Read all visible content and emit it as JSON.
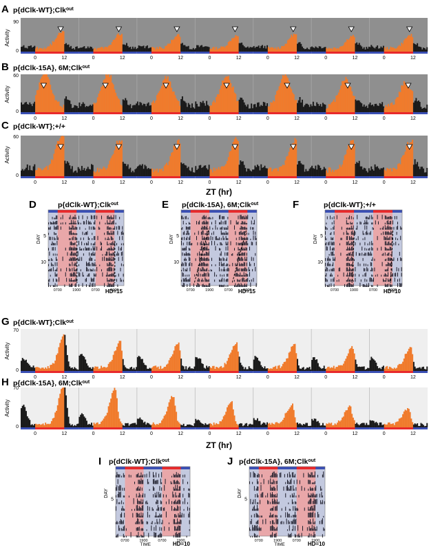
{
  "figure": {
    "zt_label": "ZT (hr)",
    "activity_label": "Activity",
    "day_label": "DAY",
    "time_label": "TIME"
  },
  "colors": {
    "activity_dark": "#1a1a1a",
    "activity_light": "#f07b2c",
    "gray_bg": "#8f8f8f",
    "light_bg": "#efefef",
    "red_bar": "#e8292b",
    "blue_bar": "#3a4fb4",
    "dark_period": "#c3c9df",
    "light_period": "#e9a7a9"
  },
  "chart_data": [
    {
      "panel": "A",
      "genotype": "p{dClk-WT};Clk",
      "genotype_sup": "out",
      "type": "bar",
      "xlabel": "",
      "ylabel": "Activity",
      "ylim": [
        0,
        90
      ],
      "yticks": [
        0,
        90
      ],
      "xticks": [
        "0",
        "12",
        "0",
        "12",
        "0",
        "12",
        "0",
        "12",
        "0",
        "12",
        "0",
        "12",
        "0",
        "12"
      ],
      "days": 7,
      "peaks": [
        [
          11,
          45
        ],
        [
          11,
          38
        ],
        [
          11,
          35
        ],
        [
          11,
          33
        ],
        [
          11,
          37
        ],
        [
          11,
          33
        ],
        [
          11,
          35
        ]
      ],
      "markers_zt": [
        10.5,
        10.5,
        10.5,
        10.5,
        10.5,
        10.5,
        10.5
      ]
    },
    {
      "panel": "B",
      "genotype": "p{dClk-15A}, 6M;Clk",
      "genotype_sup": "out",
      "type": "bar",
      "xlabel": "",
      "ylabel": "Activity",
      "ylim": [
        0,
        60
      ],
      "yticks": [
        0,
        60
      ],
      "xticks": [
        "0",
        "12",
        "0",
        "12",
        "0",
        "12",
        "0",
        "12",
        "0",
        "12",
        "0",
        "12",
        "0",
        "12"
      ],
      "days": 7,
      "peaks": [
        [
          4,
          54
        ],
        [
          6,
          52
        ],
        [
          6,
          46
        ],
        [
          7,
          50
        ],
        [
          7,
          48
        ],
        [
          8,
          44
        ],
        [
          9,
          38
        ]
      ],
      "markers_zt": [
        3.5,
        5,
        6,
        7,
        8,
        9,
        10
      ]
    },
    {
      "panel": "C",
      "genotype": "p{dClk-WT};+/+",
      "genotype_sup": "",
      "type": "bar",
      "xlabel": "ZT (hr)",
      "ylabel": "Activity",
      "ylim": [
        0,
        60
      ],
      "yticks": [
        0,
        60
      ],
      "xticks": [
        "0",
        "12",
        "0",
        "12",
        "0",
        "12",
        "0",
        "12",
        "0",
        "12",
        "0",
        "12",
        "0",
        "12"
      ],
      "days": 7,
      "peaks": [
        [
          11,
          50
        ],
        [
          11,
          45
        ],
        [
          11,
          43
        ],
        [
          11,
          45
        ],
        [
          11,
          44
        ],
        [
          11,
          44
        ],
        [
          11,
          44
        ]
      ],
      "markers_zt": [
        10.5,
        10.5,
        10.5,
        10.5,
        10.5,
        10.5,
        10.5
      ]
    },
    {
      "panel": "D",
      "type": "actogram",
      "genotype": "p{dClk-WT};Clk",
      "genotype_sup": "out",
      "time_ticks": [
        "0700",
        "1900",
        "0700",
        "1900"
      ],
      "day_ticks": [
        "5",
        "10"
      ],
      "hd": "HD=15",
      "days": 14,
      "dash": "vertical"
    },
    {
      "panel": "E",
      "type": "actogram",
      "genotype": "p{dClk-15A}, 6M;Clk",
      "genotype_sup": "out",
      "time_ticks": [
        "0700",
        "1900",
        "0700",
        "1900"
      ],
      "day_ticks": [
        "5",
        "10"
      ],
      "hd": "HD=15",
      "days": 14,
      "dash": "slanted"
    },
    {
      "panel": "F",
      "type": "actogram",
      "genotype": "p{dClk-WT};+/+",
      "genotype_sup": "",
      "time_ticks": [
        "0700",
        "1900",
        "0700",
        "1900"
      ],
      "day_ticks": [
        "5",
        "10"
      ],
      "hd": "HD=10",
      "days": 14,
      "dash": "slanted-short"
    },
    {
      "panel": "G",
      "genotype": "p{dClk-WT};Clk",
      "genotype_sup": "out",
      "type": "bar",
      "xlabel": "",
      "ylabel": "Activity",
      "ylim": [
        0,
        70
      ],
      "yticks": [
        0,
        70
      ],
      "xticks": [
        "0",
        "12",
        "0",
        "12",
        "0",
        "12",
        "0",
        "12",
        "0",
        "12",
        "0",
        "12",
        "0",
        "12"
      ],
      "days": 7,
      "peaks": [
        [
          12,
          54
        ],
        [
          11,
          42
        ],
        [
          11,
          40
        ],
        [
          11,
          40
        ],
        [
          11,
          38
        ],
        [
          11,
          33
        ],
        [
          11,
          32
        ]
      ],
      "morning": [
        18,
        25,
        22,
        20,
        20,
        20,
        18
      ]
    },
    {
      "panel": "H",
      "genotype": "p{dClk-15A}, 6M;Clk",
      "genotype_sup": "out",
      "type": "bar",
      "xlabel": "ZT (hr)",
      "ylabel": "Activity",
      "ylim": [
        0,
        70
      ],
      "yticks": [
        0,
        70
      ],
      "xticks": [
        "0",
        "12",
        "0",
        "12",
        "0",
        "12",
        "0",
        "12",
        "0",
        "12",
        "0",
        "12",
        "0",
        "12"
      ],
      "days": 7,
      "peaks": [
        [
          12,
          70
        ],
        [
          9,
          62
        ],
        [
          9,
          50
        ],
        [
          9,
          38
        ],
        [
          10,
          33
        ],
        [
          10,
          30
        ],
        [
          10,
          28
        ]
      ],
      "morning": [
        35,
        20,
        15,
        12,
        12,
        12,
        10
      ]
    },
    {
      "panel": "I",
      "type": "actogram",
      "genotype": "p{dClk-WT};Clk",
      "genotype_sup": "out",
      "time_ticks": [
        "0700",
        "1900",
        "0700",
        "1900"
      ],
      "day_ticks": [
        "5"
      ],
      "hd": "HD=10",
      "days": 10,
      "dash": "none"
    },
    {
      "panel": "J",
      "type": "actogram",
      "genotype": "p{dClk-15A}, 6M;Clk",
      "genotype_sup": "out",
      "time_ticks": [
        "0700",
        "1900",
        "0700",
        "1900"
      ],
      "day_ticks": [
        "5"
      ],
      "hd": "HD=10",
      "days": 10,
      "dash": "none"
    }
  ]
}
